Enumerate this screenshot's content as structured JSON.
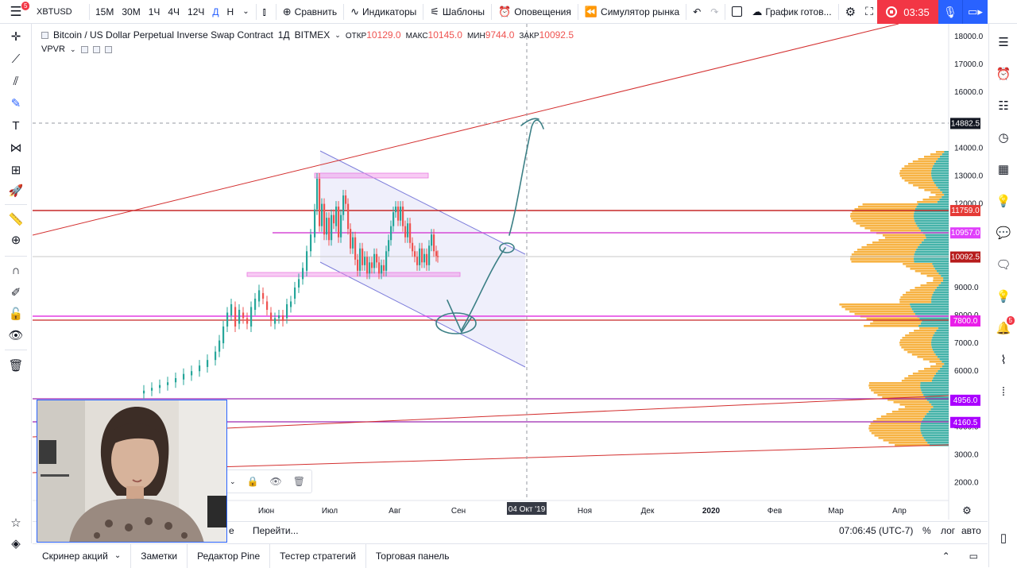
{
  "topbar": {
    "badge_count": "5",
    "symbol": "XBTUSD",
    "resolutions": [
      "15М",
      "30М",
      "1Ч",
      "4Ч",
      "12Ч",
      "Д",
      "Н"
    ],
    "active_resolution": "Д",
    "compare_label": "Сравнить",
    "indicators_label": "Индикаторы",
    "templates_label": "Шаблоны",
    "alerts_label": "Оповещения",
    "replay_label": "Симулятор рынка",
    "layout_label": "График готов...",
    "record_time": "03:35"
  },
  "legend": {
    "title": "Bitcoin / US Dollar Perpetual Inverse Swap Contract",
    "interval": "1Д",
    "exchange": "BITMEX",
    "open_label": "ОТКР",
    "open": "10129.0",
    "high_label": "МАКС",
    "high": "10145.0",
    "low_label": "МИН",
    "low": "9744.0",
    "close_label": "ЗАКР",
    "close": "10092.5",
    "indicator": "VPVR"
  },
  "price_axis": {
    "ticks": [
      "18000.0",
      "17000.0",
      "16000.0",
      "14000.0",
      "13000.0",
      "12000.0",
      "9000.0",
      "8000.0",
      "7000.0",
      "6000.0",
      "5000.0",
      "4000.0",
      "3000.0",
      "2000.0"
    ],
    "labels": [
      {
        "text": "14882.5",
        "color": "#131722"
      },
      {
        "text": "11759.0",
        "color": "#e53935"
      },
      {
        "text": "10957.0",
        "color": "#e040fb"
      },
      {
        "text": "10092.5",
        "color": "#b71c1c"
      },
      {
        "text": "7800.0",
        "color": "#e91ee9"
      },
      {
        "text": "4956.0",
        "color": "#aa00ff"
      },
      {
        "text": "4160.5",
        "color": "#aa00ff"
      }
    ]
  },
  "time_axis": {
    "ticks": [
      "Июн",
      "Июл",
      "Авг",
      "Сен",
      "Ноя",
      "Дек",
      "2020",
      "Фев",
      "Мар",
      "Апр"
    ],
    "crosshair_label": "04 Окт '19"
  },
  "bottom_nav": {
    "goto_label": "Перейти...",
    "partial_left": "е",
    "time": "07:06:45 (UTC-7)",
    "percent": "%",
    "log": "лог",
    "auto": "авто"
  },
  "bottom_tabs": [
    "Скринер акций",
    "Заметки",
    "Редактор Pine",
    "Тестер стратегий",
    "Торговая панель"
  ],
  "right_panel": {
    "alert_badge": "5"
  }
}
